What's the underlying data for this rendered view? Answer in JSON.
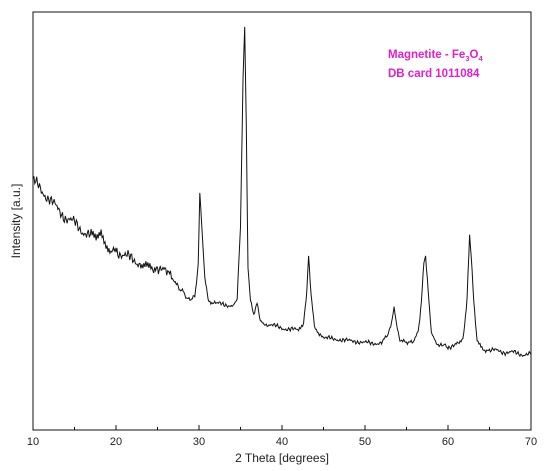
{
  "chart_data": {
    "type": "line",
    "title": "",
    "xlabel": "2 Theta [degrees]",
    "ylabel": "Intensity [a.u.]",
    "xlim": [
      10,
      70
    ],
    "ylim": [
      0,
      100
    ],
    "y_tick_labels_shown": false,
    "xticks": [
      10,
      20,
      30,
      40,
      50,
      60,
      70
    ],
    "xtick_labels": [
      "10",
      "20",
      "30",
      "40",
      "50",
      "60",
      "70"
    ],
    "grid": false,
    "annotations": {
      "phase_prefix": "Magnetite - Fe",
      "sub1": "3",
      "mid": "O",
      "sub2": "4",
      "card": "DB card 1011084",
      "color": "#e020c8"
    },
    "series": [
      {
        "line_color": "#111111",
        "x": [
          10,
          11,
          12,
          13,
          14,
          15,
          16,
          17,
          17.6,
          18.2,
          18.8,
          19.5,
          20,
          21,
          22,
          23,
          23.6,
          24.2,
          25,
          26,
          26.8,
          27.5,
          28,
          28.5,
          29,
          29.5,
          29.9,
          30.1,
          30.3,
          30.7,
          31.2,
          32,
          33,
          34,
          34.6,
          35.0,
          35.3,
          35.5,
          35.7,
          35.9,
          36.2,
          36.6,
          37.0,
          37.4,
          38,
          39,
          40,
          41,
          42,
          42.6,
          43.0,
          43.2,
          43.5,
          43.9,
          44.5,
          45,
          46,
          47,
          48,
          49,
          50,
          51,
          52,
          52.8,
          53.2,
          53.5,
          53.8,
          54.2,
          55,
          55.8,
          56.4,
          56.8,
          57.1,
          57.3,
          57.6,
          58.0,
          58.6,
          59.5,
          60,
          61,
          61.8,
          62.3,
          62.6,
          62.8,
          63.1,
          63.5,
          64.2,
          65,
          66,
          67,
          68,
          69,
          70
        ],
        "y": [
          58,
          55,
          53,
          50,
          48,
          46.5,
          44.5,
          43,
          42.5,
          45,
          41,
          40,
          39.5,
          38,
          37,
          36,
          37,
          35.5,
          35,
          33.5,
          32,
          30,
          28.5,
          27,
          26.5,
          27,
          36,
          54,
          47,
          32,
          26,
          25.5,
          25,
          25,
          27,
          45,
          85,
          98,
          72,
          35,
          26,
          23,
          25,
          21,
          20,
          19.5,
          19,
          18.5,
          18.5,
          20,
          29,
          38,
          28,
          19,
          17,
          16.5,
          16,
          16,
          15.5,
          15.5,
          15,
          15,
          15,
          17,
          21,
          24,
          20,
          15.5,
          15,
          15.5,
          18,
          26,
          36,
          38,
          29,
          18,
          15,
          14.5,
          14,
          14.5,
          15.5,
          27,
          43,
          38,
          26,
          16,
          13.5,
          13,
          13,
          12.5,
          12.5,
          12,
          12
        ]
      }
    ]
  }
}
